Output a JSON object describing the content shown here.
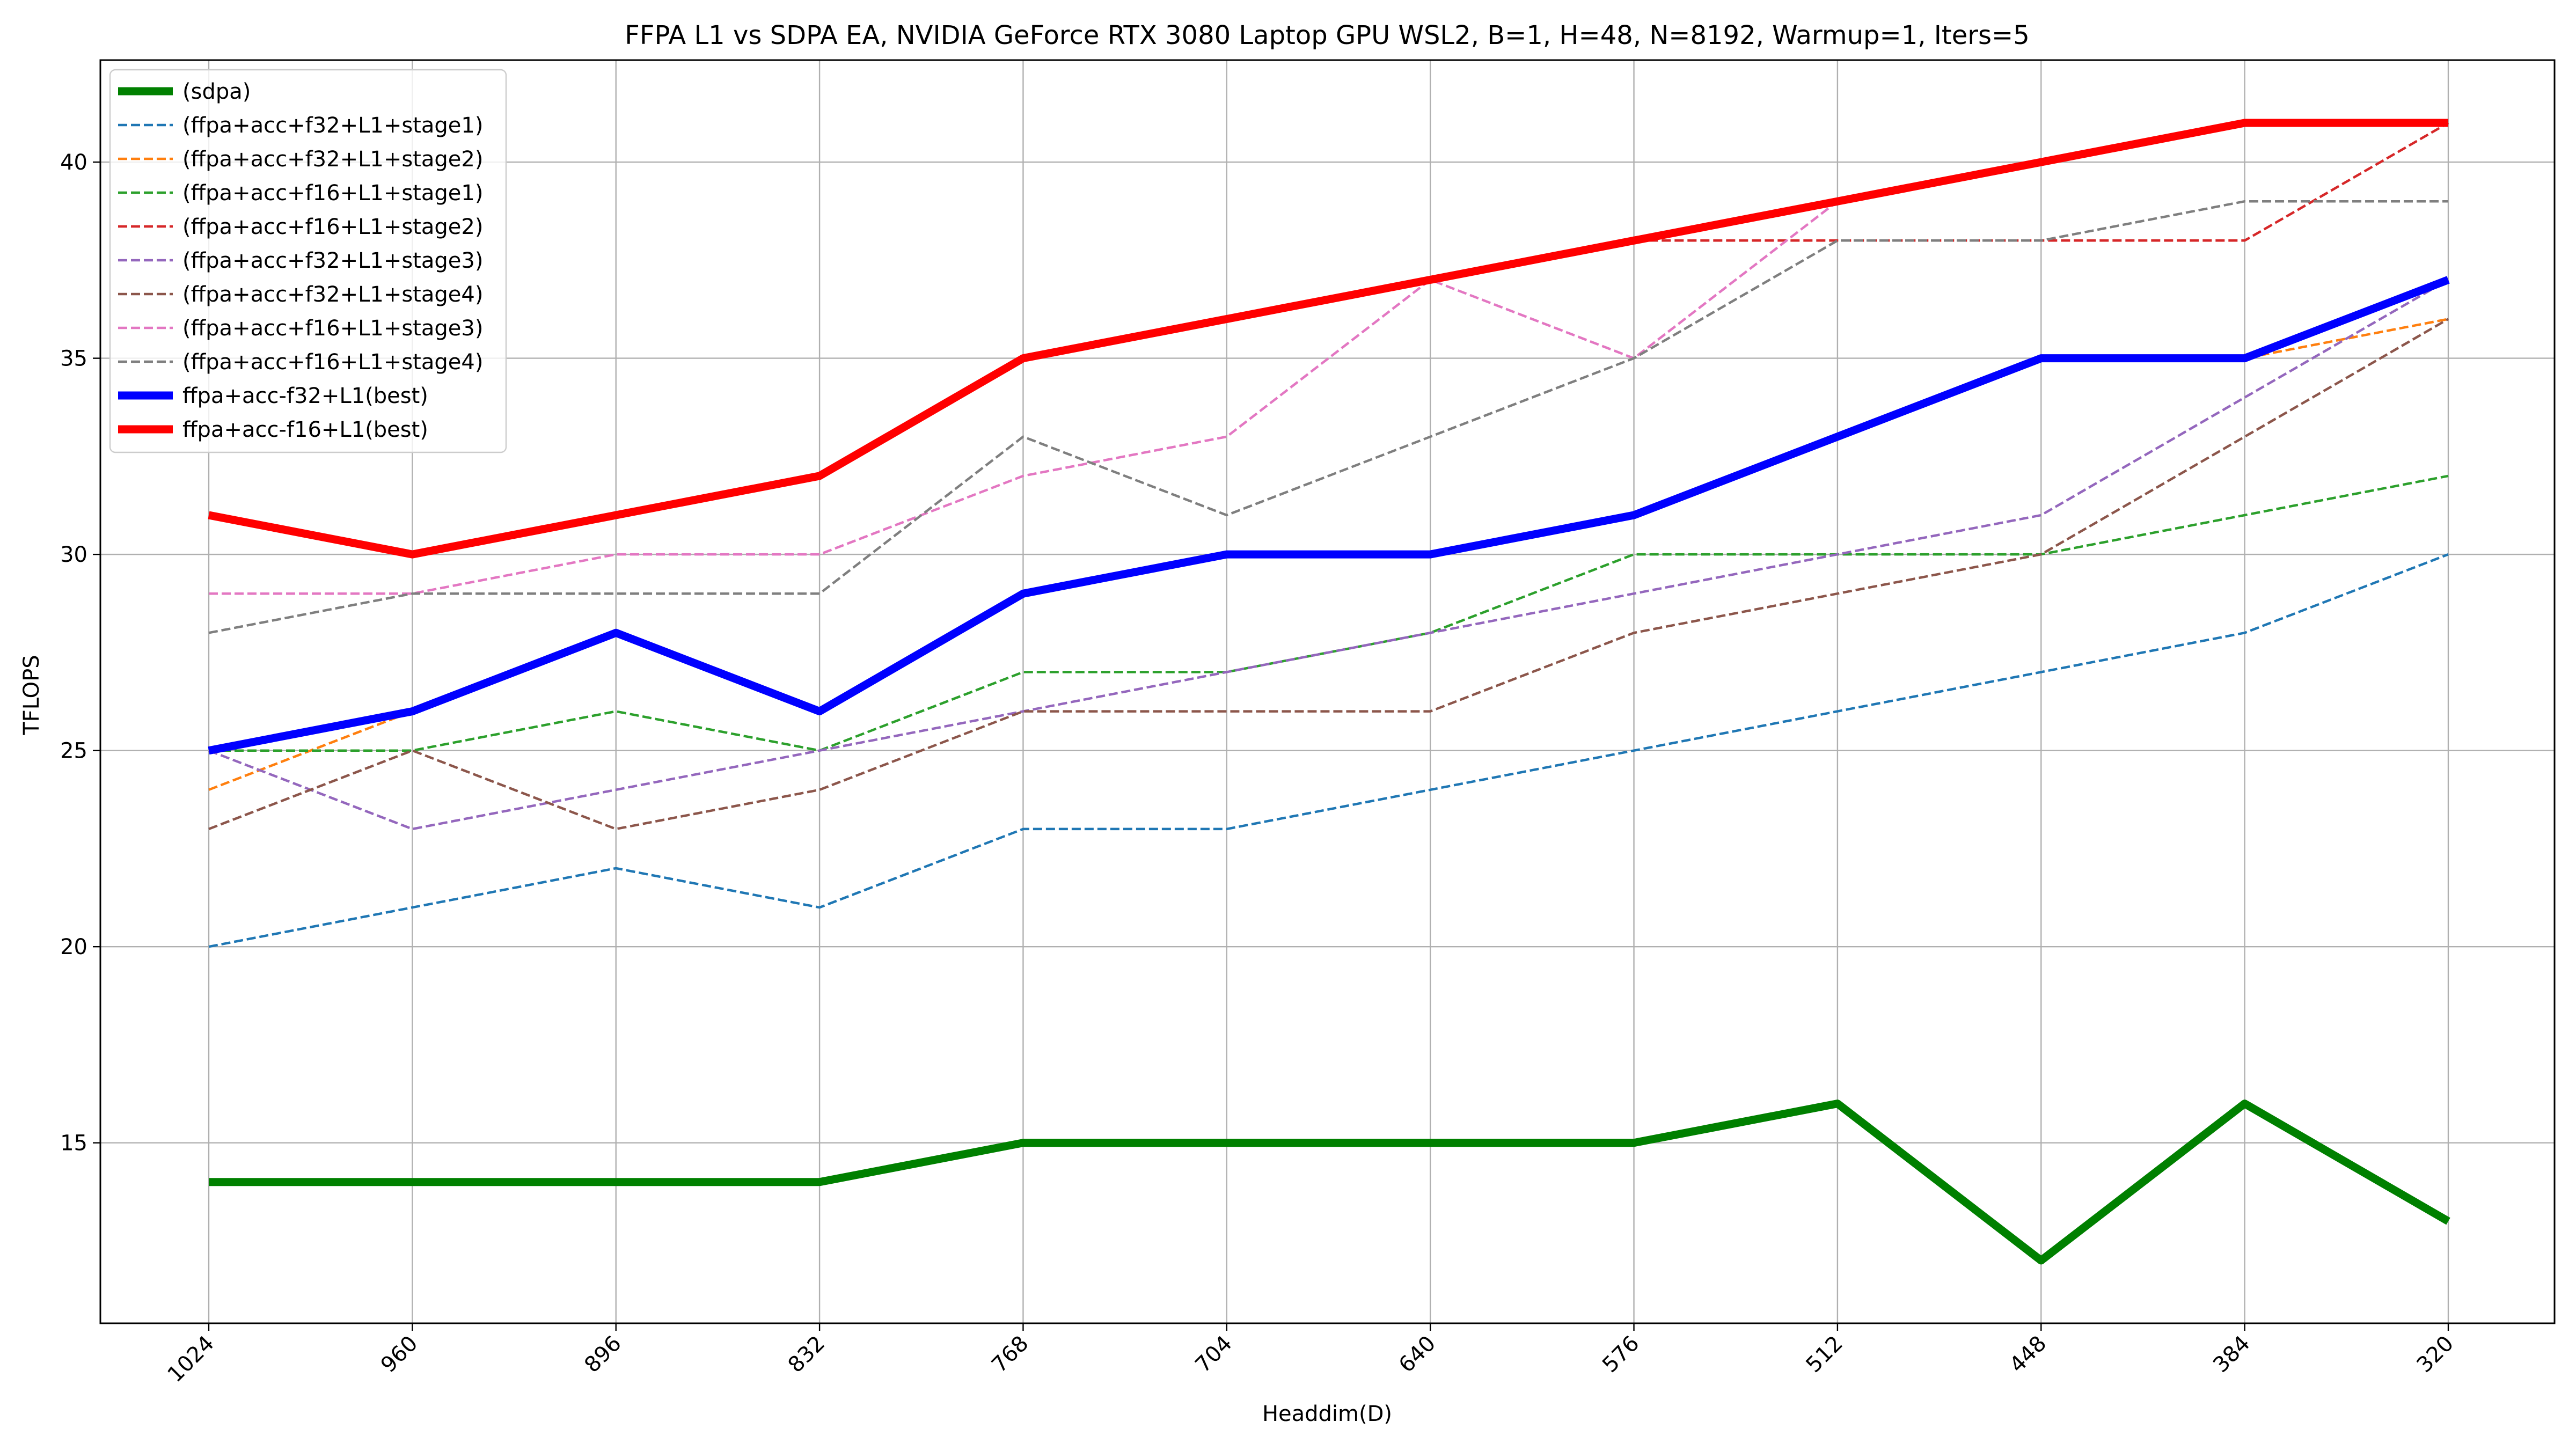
{
  "chart_data": {
    "type": "line",
    "title": "FFPA L1 vs SDPA EA, NVIDIA GeForce RTX 3080 Laptop GPU WSL2, B=1, H=48, N=8192, Warmup=1, Iters=5",
    "xlabel": "Headdim(D)",
    "ylabel": "TFLOPS",
    "categories": [
      "1024",
      "960",
      "896",
      "832",
      "768",
      "704",
      "640",
      "576",
      "512",
      "448",
      "384",
      "320"
    ],
    "yticks": [
      "15",
      "20",
      "25",
      "30",
      "35",
      "40"
    ],
    "ylim": [
      10.4,
      42.6
    ],
    "grid": true,
    "legend_position": "top-left",
    "series": [
      {
        "name": "(sdpa)",
        "color": "#008000",
        "style": "solid",
        "bold": true,
        "values": [
          14,
          14,
          14,
          14,
          15,
          15,
          15,
          15,
          16,
          12,
          16,
          13
        ]
      },
      {
        "name": "(ffpa+acc+f32+L1+stage1)",
        "color": "#1f77b4",
        "style": "dashed",
        "bold": false,
        "values": [
          20,
          21,
          22,
          21,
          23,
          23,
          24,
          25,
          26,
          27,
          28,
          30
        ]
      },
      {
        "name": "(ffpa+acc+f32+L1+stage2)",
        "color": "#ff7f0e",
        "style": "dashed",
        "bold": false,
        "values": [
          24,
          26,
          28,
          26,
          29,
          30,
          30,
          31,
          33,
          35,
          35,
          36
        ]
      },
      {
        "name": "(ffpa+acc+f16+L1+stage1)",
        "color": "#2ca02c",
        "style": "dashed",
        "bold": false,
        "values": [
          25,
          25,
          26,
          25,
          27,
          27,
          28,
          30,
          30,
          30,
          31,
          32
        ]
      },
      {
        "name": "(ffpa+acc+f16+L1+stage2)",
        "color": "#d62728",
        "style": "dashed",
        "bold": false,
        "values": [
          31,
          30,
          31,
          32,
          35,
          36,
          37,
          38,
          38,
          38,
          38,
          41
        ]
      },
      {
        "name": "(ffpa+acc+f32+L1+stage3)",
        "color": "#9467bd",
        "style": "dashed",
        "bold": false,
        "values": [
          25,
          23,
          24,
          25,
          26,
          27,
          28,
          29,
          30,
          31,
          34,
          37
        ]
      },
      {
        "name": "(ffpa+acc+f32+L1+stage4)",
        "color": "#8c564b",
        "style": "dashed",
        "bold": false,
        "values": [
          23,
          25,
          23,
          24,
          26,
          26,
          26,
          28,
          29,
          30,
          33,
          36
        ]
      },
      {
        "name": "(ffpa+acc+f16+L1+stage3)",
        "color": "#e377c2",
        "style": "dashed",
        "bold": false,
        "values": [
          29,
          29,
          30,
          30,
          32,
          33,
          37,
          35,
          39,
          40,
          41,
          41
        ]
      },
      {
        "name": "(ffpa+acc+f16+L1+stage4)",
        "color": "#7f7f7f",
        "style": "dashed",
        "bold": false,
        "values": [
          28,
          29,
          29,
          29,
          33,
          31,
          33,
          35,
          38,
          38,
          39,
          39
        ]
      },
      {
        "name": "ffpa+acc-f32+L1(best)",
        "color": "#0000ff",
        "style": "solid",
        "bold": true,
        "values": [
          25,
          26,
          28,
          26,
          29,
          30,
          30,
          31,
          33,
          35,
          35,
          37
        ]
      },
      {
        "name": "ffpa+acc-f16+L1(best)",
        "color": "#ff0000",
        "style": "solid",
        "bold": true,
        "values": [
          31,
          30,
          31,
          32,
          35,
          36,
          37,
          38,
          39,
          40,
          41,
          41
        ]
      }
    ]
  }
}
